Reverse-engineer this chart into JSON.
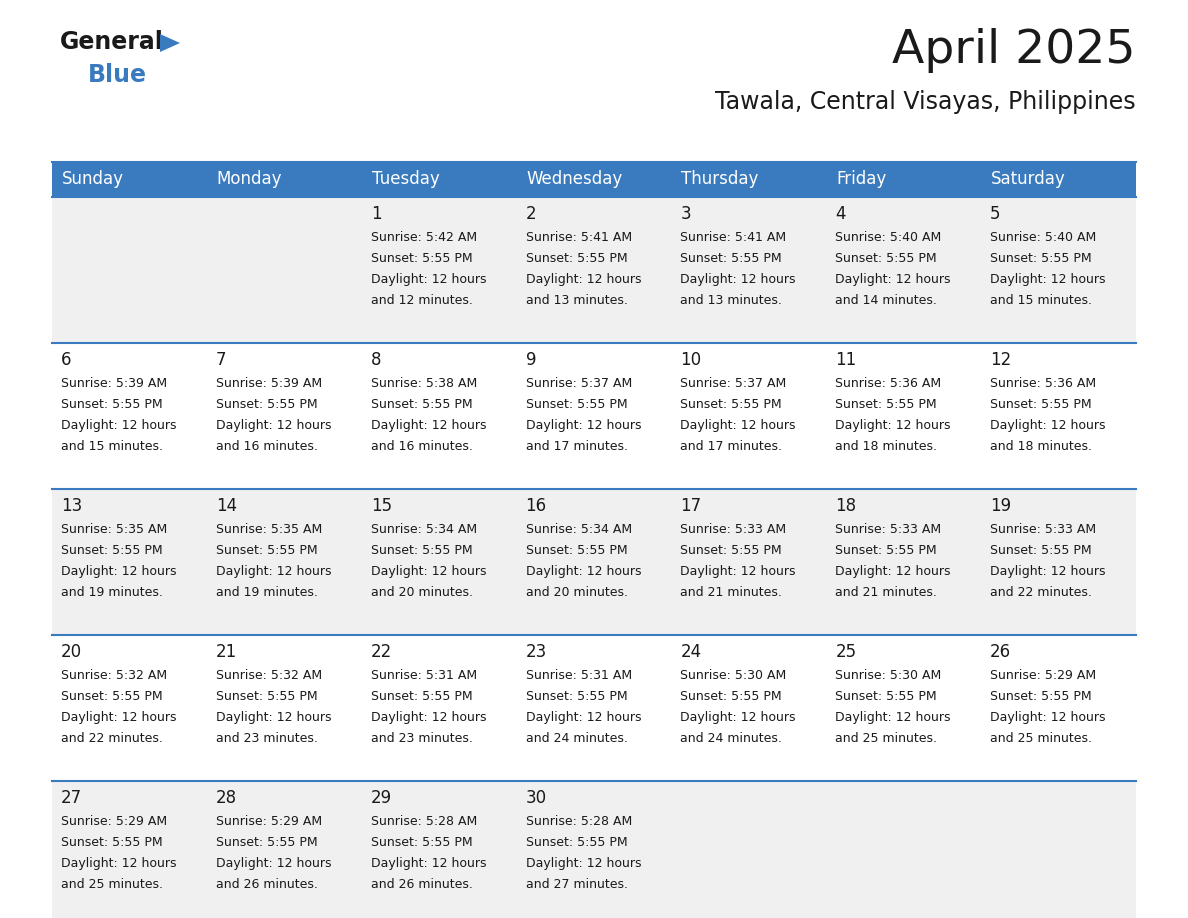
{
  "title": "April 2025",
  "subtitle": "Tawala, Central Visayas, Philippines",
  "header_bg": "#3a7bbf",
  "header_text": "#ffffff",
  "border_color": "#3a7bbf",
  "day_headers": [
    "Sunday",
    "Monday",
    "Tuesday",
    "Wednesday",
    "Thursday",
    "Friday",
    "Saturday"
  ],
  "title_color": "#1a1a1a",
  "subtitle_color": "#1a1a1a",
  "cell_text_color": "#1a1a1a",
  "days": [
    {
      "day": 1,
      "col": 2,
      "row": 0,
      "sunrise": "5:42 AM",
      "sunset": "5:55 PM",
      "daylight_min": "12 minutes."
    },
    {
      "day": 2,
      "col": 3,
      "row": 0,
      "sunrise": "5:41 AM",
      "sunset": "5:55 PM",
      "daylight_min": "13 minutes."
    },
    {
      "day": 3,
      "col": 4,
      "row": 0,
      "sunrise": "5:41 AM",
      "sunset": "5:55 PM",
      "daylight_min": "13 minutes."
    },
    {
      "day": 4,
      "col": 5,
      "row": 0,
      "sunrise": "5:40 AM",
      "sunset": "5:55 PM",
      "daylight_min": "14 minutes."
    },
    {
      "day": 5,
      "col": 6,
      "row": 0,
      "sunrise": "5:40 AM",
      "sunset": "5:55 PM",
      "daylight_min": "15 minutes."
    },
    {
      "day": 6,
      "col": 0,
      "row": 1,
      "sunrise": "5:39 AM",
      "sunset": "5:55 PM",
      "daylight_min": "15 minutes."
    },
    {
      "day": 7,
      "col": 1,
      "row": 1,
      "sunrise": "5:39 AM",
      "sunset": "5:55 PM",
      "daylight_min": "16 minutes."
    },
    {
      "day": 8,
      "col": 2,
      "row": 1,
      "sunrise": "5:38 AM",
      "sunset": "5:55 PM",
      "daylight_min": "16 minutes."
    },
    {
      "day": 9,
      "col": 3,
      "row": 1,
      "sunrise": "5:37 AM",
      "sunset": "5:55 PM",
      "daylight_min": "17 minutes."
    },
    {
      "day": 10,
      "col": 4,
      "row": 1,
      "sunrise": "5:37 AM",
      "sunset": "5:55 PM",
      "daylight_min": "17 minutes."
    },
    {
      "day": 11,
      "col": 5,
      "row": 1,
      "sunrise": "5:36 AM",
      "sunset": "5:55 PM",
      "daylight_min": "18 minutes."
    },
    {
      "day": 12,
      "col": 6,
      "row": 1,
      "sunrise": "5:36 AM",
      "sunset": "5:55 PM",
      "daylight_min": "18 minutes."
    },
    {
      "day": 13,
      "col": 0,
      "row": 2,
      "sunrise": "5:35 AM",
      "sunset": "5:55 PM",
      "daylight_min": "19 minutes."
    },
    {
      "day": 14,
      "col": 1,
      "row": 2,
      "sunrise": "5:35 AM",
      "sunset": "5:55 PM",
      "daylight_min": "19 minutes."
    },
    {
      "day": 15,
      "col": 2,
      "row": 2,
      "sunrise": "5:34 AM",
      "sunset": "5:55 PM",
      "daylight_min": "20 minutes."
    },
    {
      "day": 16,
      "col": 3,
      "row": 2,
      "sunrise": "5:34 AM",
      "sunset": "5:55 PM",
      "daylight_min": "20 minutes."
    },
    {
      "day": 17,
      "col": 4,
      "row": 2,
      "sunrise": "5:33 AM",
      "sunset": "5:55 PM",
      "daylight_min": "21 minutes."
    },
    {
      "day": 18,
      "col": 5,
      "row": 2,
      "sunrise": "5:33 AM",
      "sunset": "5:55 PM",
      "daylight_min": "21 minutes."
    },
    {
      "day": 19,
      "col": 6,
      "row": 2,
      "sunrise": "5:33 AM",
      "sunset": "5:55 PM",
      "daylight_min": "22 minutes."
    },
    {
      "day": 20,
      "col": 0,
      "row": 3,
      "sunrise": "5:32 AM",
      "sunset": "5:55 PM",
      "daylight_min": "22 minutes."
    },
    {
      "day": 21,
      "col": 1,
      "row": 3,
      "sunrise": "5:32 AM",
      "sunset": "5:55 PM",
      "daylight_min": "23 minutes."
    },
    {
      "day": 22,
      "col": 2,
      "row": 3,
      "sunrise": "5:31 AM",
      "sunset": "5:55 PM",
      "daylight_min": "23 minutes."
    },
    {
      "day": 23,
      "col": 3,
      "row": 3,
      "sunrise": "5:31 AM",
      "sunset": "5:55 PM",
      "daylight_min": "24 minutes."
    },
    {
      "day": 24,
      "col": 4,
      "row": 3,
      "sunrise": "5:30 AM",
      "sunset": "5:55 PM",
      "daylight_min": "24 minutes."
    },
    {
      "day": 25,
      "col": 5,
      "row": 3,
      "sunrise": "5:30 AM",
      "sunset": "5:55 PM",
      "daylight_min": "25 minutes."
    },
    {
      "day": 26,
      "col": 6,
      "row": 3,
      "sunrise": "5:29 AM",
      "sunset": "5:55 PM",
      "daylight_min": "25 minutes."
    },
    {
      "day": 27,
      "col": 0,
      "row": 4,
      "sunrise": "5:29 AM",
      "sunset": "5:55 PM",
      "daylight_min": "25 minutes."
    },
    {
      "day": 28,
      "col": 1,
      "row": 4,
      "sunrise": "5:29 AM",
      "sunset": "5:55 PM",
      "daylight_min": "26 minutes."
    },
    {
      "day": 29,
      "col": 2,
      "row": 4,
      "sunrise": "5:28 AM",
      "sunset": "5:55 PM",
      "daylight_min": "26 minutes."
    },
    {
      "day": 30,
      "col": 3,
      "row": 4,
      "sunrise": "5:28 AM",
      "sunset": "5:55 PM",
      "daylight_min": "27 minutes."
    }
  ],
  "num_rows": 5,
  "num_cols": 7,
  "logo_blue_color": "#3a7bbf",
  "row_bg_light": "#f0f0f0",
  "row_bg_white": "#ffffff"
}
